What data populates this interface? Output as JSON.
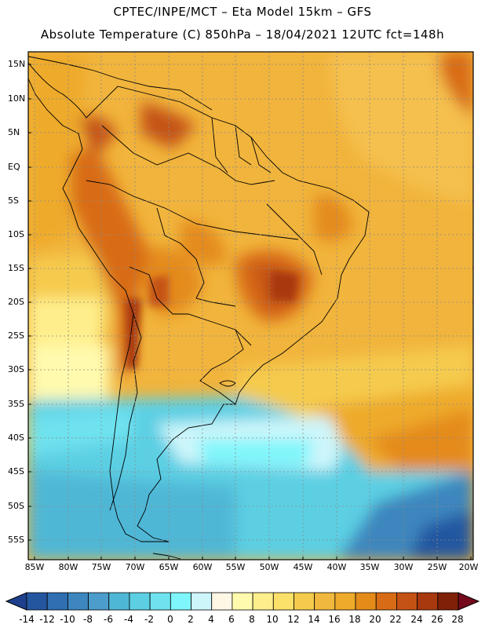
{
  "header": {
    "line1": "CPTEC/INPE/MCT –  Eta Model 15km – GFS",
    "line2": "Absolute Temperature (C) 850hPa – 18/04/2021 12UTC fct=148h"
  },
  "map": {
    "lat_labels": [
      "15N",
      "10N",
      "5N",
      "EQ",
      "5S",
      "10S",
      "15S",
      "20S",
      "25S",
      "30S",
      "35S",
      "40S",
      "45S",
      "50S",
      "55S"
    ],
    "lon_labels": [
      "85W",
      "80W",
      "75W",
      "70W",
      "65W",
      "60W",
      "55W",
      "50W",
      "45W",
      "40W",
      "35W",
      "30W",
      "25W",
      "20W"
    ]
  },
  "colorbar": {
    "labels": [
      "-14",
      "-12",
      "-10",
      "-8",
      "-6",
      "-4",
      "-2",
      "0",
      "2",
      "4",
      "6",
      "8",
      "10",
      "12",
      "14",
      "16",
      "18",
      "20",
      "22",
      "24",
      "26",
      "28"
    ],
    "colors": [
      "#1d3f8c",
      "#2456a0",
      "#2f6fb2",
      "#3d86be",
      "#4c9dcb",
      "#4fb7d6",
      "#5ccfe3",
      "#6ee2ef",
      "#7ef6fb",
      "#cdf6fb",
      "#fff7e6",
      "#fffaae",
      "#ffef8c",
      "#fbe06a",
      "#f5cb4e",
      "#f0b83e",
      "#eeaa2a",
      "#e48b1a",
      "#d86c16",
      "#c45214",
      "#a8380e",
      "#7e2108",
      "#750a1c"
    ]
  }
}
